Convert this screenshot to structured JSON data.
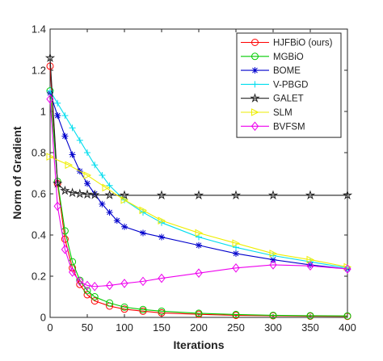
{
  "chart_data": {
    "type": "line",
    "title": "",
    "xlabel": "Iterations",
    "ylabel": "Norm of Gradient",
    "xlim": [
      0,
      400
    ],
    "ylim": [
      0,
      1.4
    ],
    "xticks": [
      0,
      50,
      100,
      150,
      200,
      250,
      300,
      350,
      400
    ],
    "yticks": [
      0,
      0.2,
      0.4,
      0.6,
      0.8,
      1,
      1.2,
      1.4
    ],
    "grid": false,
    "legend_position": "top-right",
    "series": [
      {
        "name": "HJFBiO (ours)",
        "color": "#ff0000",
        "marker": "circle",
        "x": [
          0,
          10,
          20,
          30,
          40,
          50,
          60,
          80,
          100,
          125,
          150,
          200,
          250,
          300,
          350,
          400
        ],
        "y": [
          1.22,
          0.65,
          0.38,
          0.24,
          0.16,
          0.11,
          0.08,
          0.055,
          0.04,
          0.03,
          0.022,
          0.015,
          0.01,
          0.008,
          0.006,
          0.005
        ]
      },
      {
        "name": "MGBiO",
        "color": "#00cc00",
        "marker": "circle",
        "x": [
          0,
          10,
          20,
          30,
          40,
          50,
          60,
          80,
          100,
          125,
          150,
          200,
          250,
          300,
          350,
          400
        ],
        "y": [
          1.1,
          0.66,
          0.42,
          0.27,
          0.18,
          0.13,
          0.1,
          0.07,
          0.05,
          0.038,
          0.03,
          0.02,
          0.014,
          0.01,
          0.008,
          0.007
        ]
      },
      {
        "name": "BOME",
        "color": "#0000cc",
        "marker": "asterisk",
        "x": [
          0,
          10,
          20,
          30,
          40,
          50,
          60,
          70,
          80,
          90,
          100,
          125,
          150,
          200,
          250,
          300,
          350,
          400
        ],
        "y": [
          1.09,
          0.98,
          0.88,
          0.79,
          0.71,
          0.65,
          0.6,
          0.55,
          0.51,
          0.47,
          0.44,
          0.41,
          0.39,
          0.35,
          0.31,
          0.28,
          0.255,
          0.235
        ]
      },
      {
        "name": "V-PBGD",
        "color": "#00ddee",
        "marker": "plus",
        "x": [
          0,
          10,
          20,
          30,
          40,
          50,
          60,
          70,
          80,
          100,
          125,
          150,
          200,
          250,
          300,
          350,
          400
        ],
        "y": [
          1.1,
          1.04,
          0.98,
          0.92,
          0.86,
          0.8,
          0.74,
          0.69,
          0.64,
          0.57,
          0.51,
          0.46,
          0.39,
          0.34,
          0.3,
          0.27,
          0.24
        ]
      },
      {
        "name": "GALET",
        "color": "#222222",
        "marker": "star",
        "x": [
          0,
          10,
          20,
          30,
          40,
          50,
          60,
          80,
          100,
          150,
          200,
          250,
          300,
          350,
          400
        ],
        "y": [
          1.26,
          0.65,
          0.615,
          0.605,
          0.6,
          0.597,
          0.595,
          0.594,
          0.593,
          0.593,
          0.593,
          0.593,
          0.593,
          0.593,
          0.593
        ]
      },
      {
        "name": "SLM",
        "color": "#eeee00",
        "marker": "triangle-right",
        "x": [
          0,
          25,
          50,
          75,
          100,
          125,
          150,
          200,
          250,
          300,
          350,
          400
        ],
        "y": [
          0.78,
          0.74,
          0.69,
          0.63,
          0.57,
          0.52,
          0.47,
          0.41,
          0.36,
          0.31,
          0.28,
          0.245
        ]
      },
      {
        "name": "BVFSM",
        "color": "#ee00ee",
        "marker": "diamond",
        "x": [
          0,
          10,
          20,
          30,
          40,
          50,
          60,
          80,
          100,
          125,
          150,
          200,
          250,
          300,
          350,
          400
        ],
        "y": [
          1.06,
          0.54,
          0.33,
          0.22,
          0.175,
          0.155,
          0.15,
          0.155,
          0.165,
          0.175,
          0.19,
          0.215,
          0.24,
          0.255,
          0.25,
          0.235
        ]
      }
    ]
  }
}
